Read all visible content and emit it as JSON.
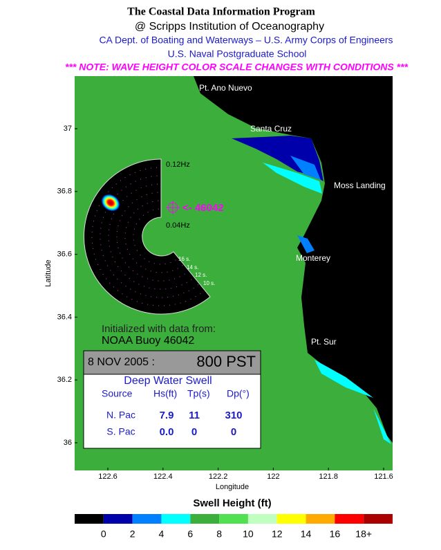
{
  "header": {
    "title": "The Coastal Data Information Program",
    "subtitle": "@ Scripps Institution of Oceanography",
    "sponsors": [
      "CA Dept. of Boating and Waterways – U.S. Army Corps of Engineers",
      "U.S. Naval Postgraduate School"
    ],
    "note": "*** NOTE: WAVE HEIGHT COLOR SCALE CHANGES WITH CONDITIONS ***"
  },
  "map": {
    "place_labels": [
      "Pt. Ano Nuevo",
      "Santa Cruz",
      "Moss Landing",
      "Monterey",
      "Pt. Sur"
    ],
    "latitude_label": "Latitude",
    "longitude_label": "Longitude",
    "latitude_ticks": [
      37,
      36.8,
      36.6,
      36.4,
      36.2,
      36
    ],
    "longitude_ticks": [
      122.6,
      122.4,
      122.2,
      122,
      121.8,
      121.6
    ]
  },
  "inset": {
    "frequency_labels": [
      "0.12Hz",
      "0.04Hz"
    ],
    "period_labels": [
      "16 s.",
      "14 s.",
      "12 s.",
      "10 s."
    ],
    "buoy_label": "<- 46042"
  },
  "info": {
    "initialized": "Initialized with data from:",
    "source": "NOAA Buoy 46042",
    "date": "8 NOV 2005 :",
    "time": "800 PST",
    "table_title": "Deep Water Swell",
    "columns": [
      "Source",
      "Hs(ft)",
      "Tp(s)",
      "Dp(°)"
    ],
    "rows": [
      [
        "N. Pac",
        7.9,
        11,
        310
      ],
      [
        "S. Pac",
        "0.0",
        0,
        0
      ]
    ]
  },
  "legend": {
    "title": "Swell Height (ft)",
    "colors": [
      "#000000",
      "#0000aa",
      "#0080ff",
      "#00ffff",
      "#3cae3c",
      "#50e050",
      "#bfffbf",
      "#ffff00",
      "#ffaa00",
      "#ff0000",
      "#aa0000"
    ],
    "labels": [
      0,
      2,
      4,
      6,
      8,
      10,
      12,
      14,
      16,
      "18+"
    ]
  }
}
